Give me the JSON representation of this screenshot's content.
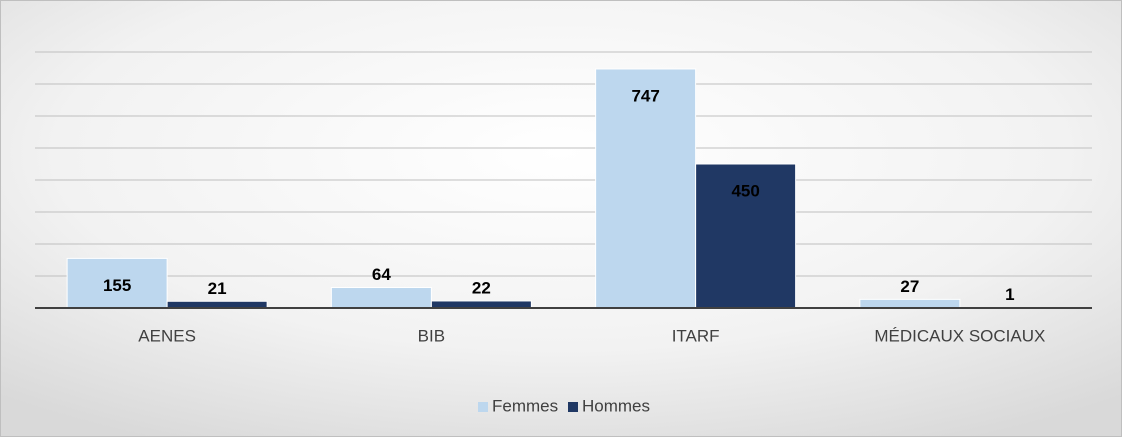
{
  "chart_data": {
    "type": "bar",
    "categories": [
      "AENES",
      "BIB",
      "ITARF",
      "MÉDICAUX SOCIAUX"
    ],
    "series": [
      {
        "name": "Femmes",
        "color": "#bdd7ee",
        "values": [
          155,
          64,
          747,
          27
        ]
      },
      {
        "name": "Hommes",
        "color": "#203864",
        "values": [
          21,
          22,
          450,
          1
        ]
      }
    ],
    "ylim": [
      0,
      800
    ],
    "yticks": [
      0,
      100,
      200,
      300,
      400,
      500,
      600,
      700,
      800
    ],
    "grid": true,
    "legend": "bottom"
  }
}
